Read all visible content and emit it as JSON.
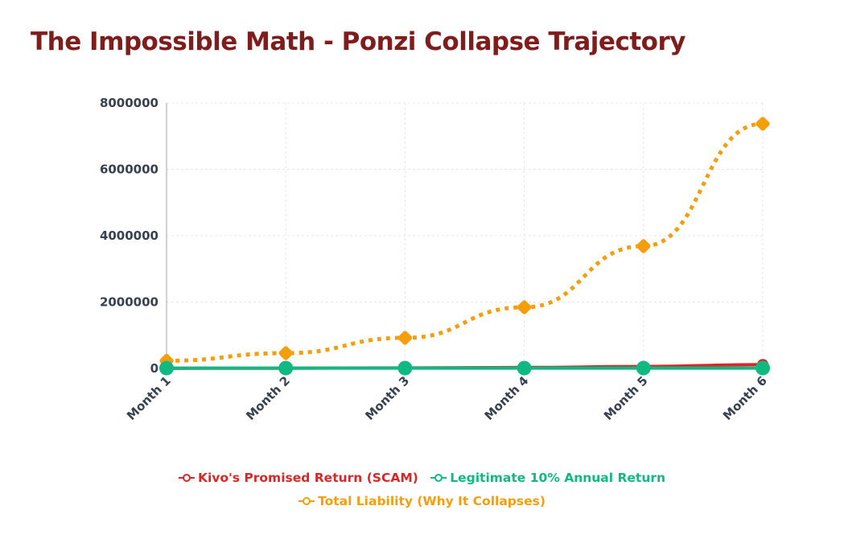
{
  "chart_data": {
    "type": "line",
    "title": "The Impossible Math - Ponzi Collapse Trajectory",
    "categories": [
      "Month 1",
      "Month 2",
      "Month 3",
      "Month 4",
      "Month 5",
      "Month 6"
    ],
    "ylim": [
      0,
      8000000
    ],
    "yticks": [
      "0",
      "2000000",
      "4000000",
      "6000000",
      "8000000"
    ],
    "ytick_values": [
      0,
      2000000,
      4000000,
      6000000,
      8000000
    ],
    "grid": true,
    "legend_position": "bottom",
    "series": [
      {
        "name": "Kivo's Promised Return (SCAM)",
        "color": "#dc2626",
        "values": [
          3600,
          7200,
          14400,
          28800,
          57600,
          115200
        ]
      },
      {
        "name": "Legitimate 10% Annual Return",
        "color": "#10b981",
        "values": [
          10083,
          10167,
          10252,
          10338,
          10424,
          10511
        ]
      },
      {
        "name": "Total Liability (Why It Collapses)",
        "color": "#f59e0b",
        "dashed": true,
        "values": [
          230400,
          460800,
          921600,
          1843200,
          3686400,
          7372800
        ]
      }
    ]
  }
}
